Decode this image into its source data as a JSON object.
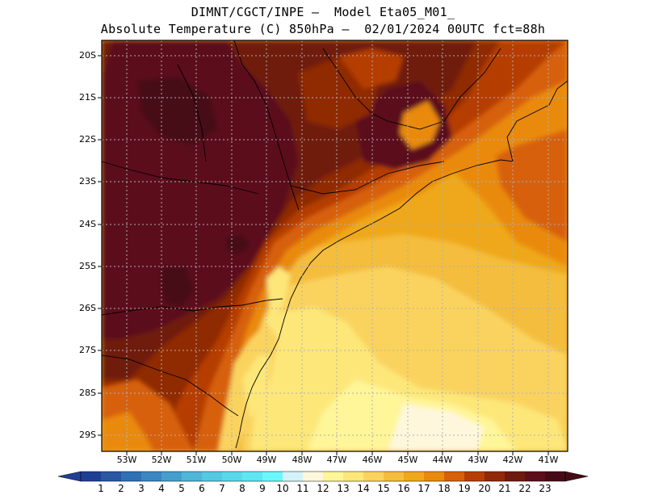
{
  "title_line1": "DIMNT/CGCT/INPE —  Model Eta05_M01_",
  "title_line2": "Absolute Temperature (C) 850hPa —  02/01/2024 00UTC fct=88h",
  "lat_labels": [
    "20S",
    "21S",
    "22S",
    "23S",
    "24S",
    "25S",
    "26S",
    "27S",
    "28S",
    "29S"
  ],
  "lon_labels": [
    "53W",
    "52W",
    "51W",
    "50W",
    "49W",
    "48W",
    "47W",
    "46W",
    "45W",
    "44W",
    "43W",
    "42W",
    "41W"
  ],
  "colorbar": {
    "labels": [
      "1",
      "2",
      "3",
      "4",
      "5",
      "6",
      "7",
      "8",
      "9",
      "10",
      "11",
      "12",
      "13",
      "14",
      "15",
      "16",
      "17",
      "18",
      "19",
      "20",
      "21",
      "22",
      "23"
    ],
    "colors": [
      "#1f3f95",
      "#2957a4",
      "#3070b4",
      "#3a87c1",
      "#469ecd",
      "#4fb5d9",
      "#55c8e2",
      "#5ad8eb",
      "#5ee6f3",
      "#6af7fb",
      "#d4f2f7",
      "#fff7dc",
      "#fff599",
      "#fde779",
      "#fad35e",
      "#f4bd3e",
      "#efa81b",
      "#e98a0e",
      "#d76108",
      "#b63e05",
      "#902906",
      "#6f1a0e",
      "#5c0f1a",
      "#460a17"
    ],
    "left_arrow_color": "#1f3f95",
    "right_arrow_color": "#460a17"
  }
}
